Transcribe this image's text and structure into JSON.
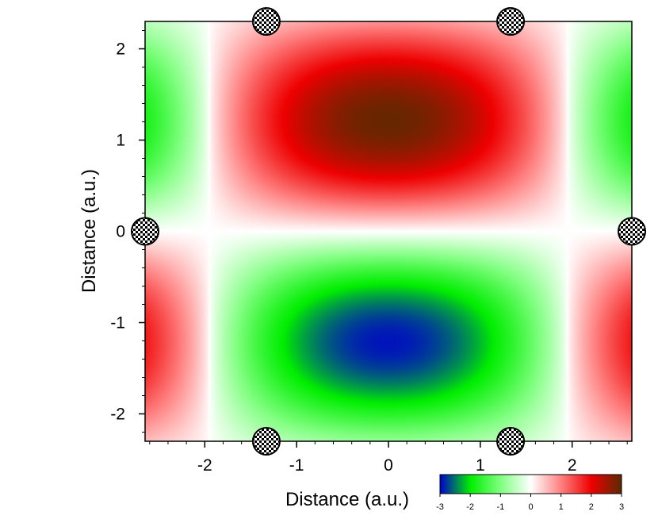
{
  "chart_data": {
    "type": "heatmap",
    "xlabel": "Distance (a.u.)",
    "ylabel": "Distance (a.u.)",
    "xlim": [
      -2.65,
      2.65
    ],
    "ylim": [
      -2.3,
      2.3
    ],
    "x_ticks": [
      -2,
      -1,
      0,
      1,
      2
    ],
    "y_ticks": [
      -2,
      -1,
      0,
      1,
      2
    ],
    "x_tick_labels": [
      "-2",
      "-1",
      "0",
      "1",
      "2"
    ],
    "y_tick_labels": [
      "-2",
      "-1",
      "0",
      "1",
      "2"
    ],
    "field": {
      "description_of_values": "standing-wave amplitude: positive lobe centered near (0, 1.3), negative lobe near (0, -1.3), sign reverses beyond x≈±1.95",
      "peak_positive": {
        "x": 0,
        "y": 1.3,
        "value": 3
      },
      "peak_negative": {
        "x": 0,
        "y": -1.3,
        "value": -3
      },
      "nodal_lines": {
        "y": [
          0
        ],
        "x": [
          -1.95,
          1.95
        ]
      }
    },
    "markers": [
      {
        "x": -1.33,
        "y": 2.3
      },
      {
        "x": 1.33,
        "y": 2.3
      },
      {
        "x": -2.65,
        "y": 0
      },
      {
        "x": 2.65,
        "y": 0
      },
      {
        "x": -1.33,
        "y": -2.3
      },
      {
        "x": 1.33,
        "y": -2.3
      }
    ],
    "colorbar": {
      "range": [
        -3,
        3
      ],
      "ticks": [
        "-3",
        "-2",
        "-1",
        "0",
        "1",
        "2",
        "3"
      ],
      "stops": [
        {
          "value": -3,
          "color": "#0000cc"
        },
        {
          "value": -2,
          "color": "#00ee00"
        },
        {
          "value": -1,
          "color": "#80ff80"
        },
        {
          "value": 0,
          "color": "#ffffff"
        },
        {
          "value": 1,
          "color": "#ff8080"
        },
        {
          "value": 2,
          "color": "#ee0000"
        },
        {
          "value": 3,
          "color": "#5a2a00"
        }
      ]
    }
  }
}
